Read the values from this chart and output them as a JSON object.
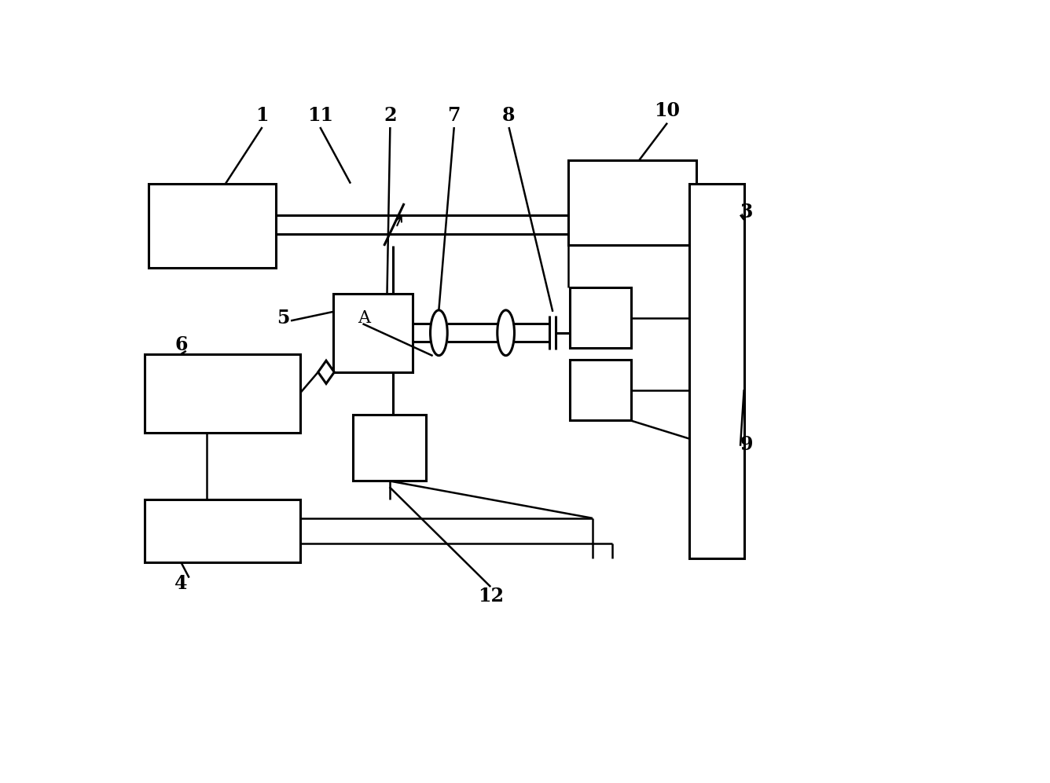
{
  "bg": "#ffffff",
  "lc": "#000000",
  "lw": 2.2,
  "tlw": 1.8,
  "fw": 13.36,
  "fh": 9.97,
  "dpi": 100
}
